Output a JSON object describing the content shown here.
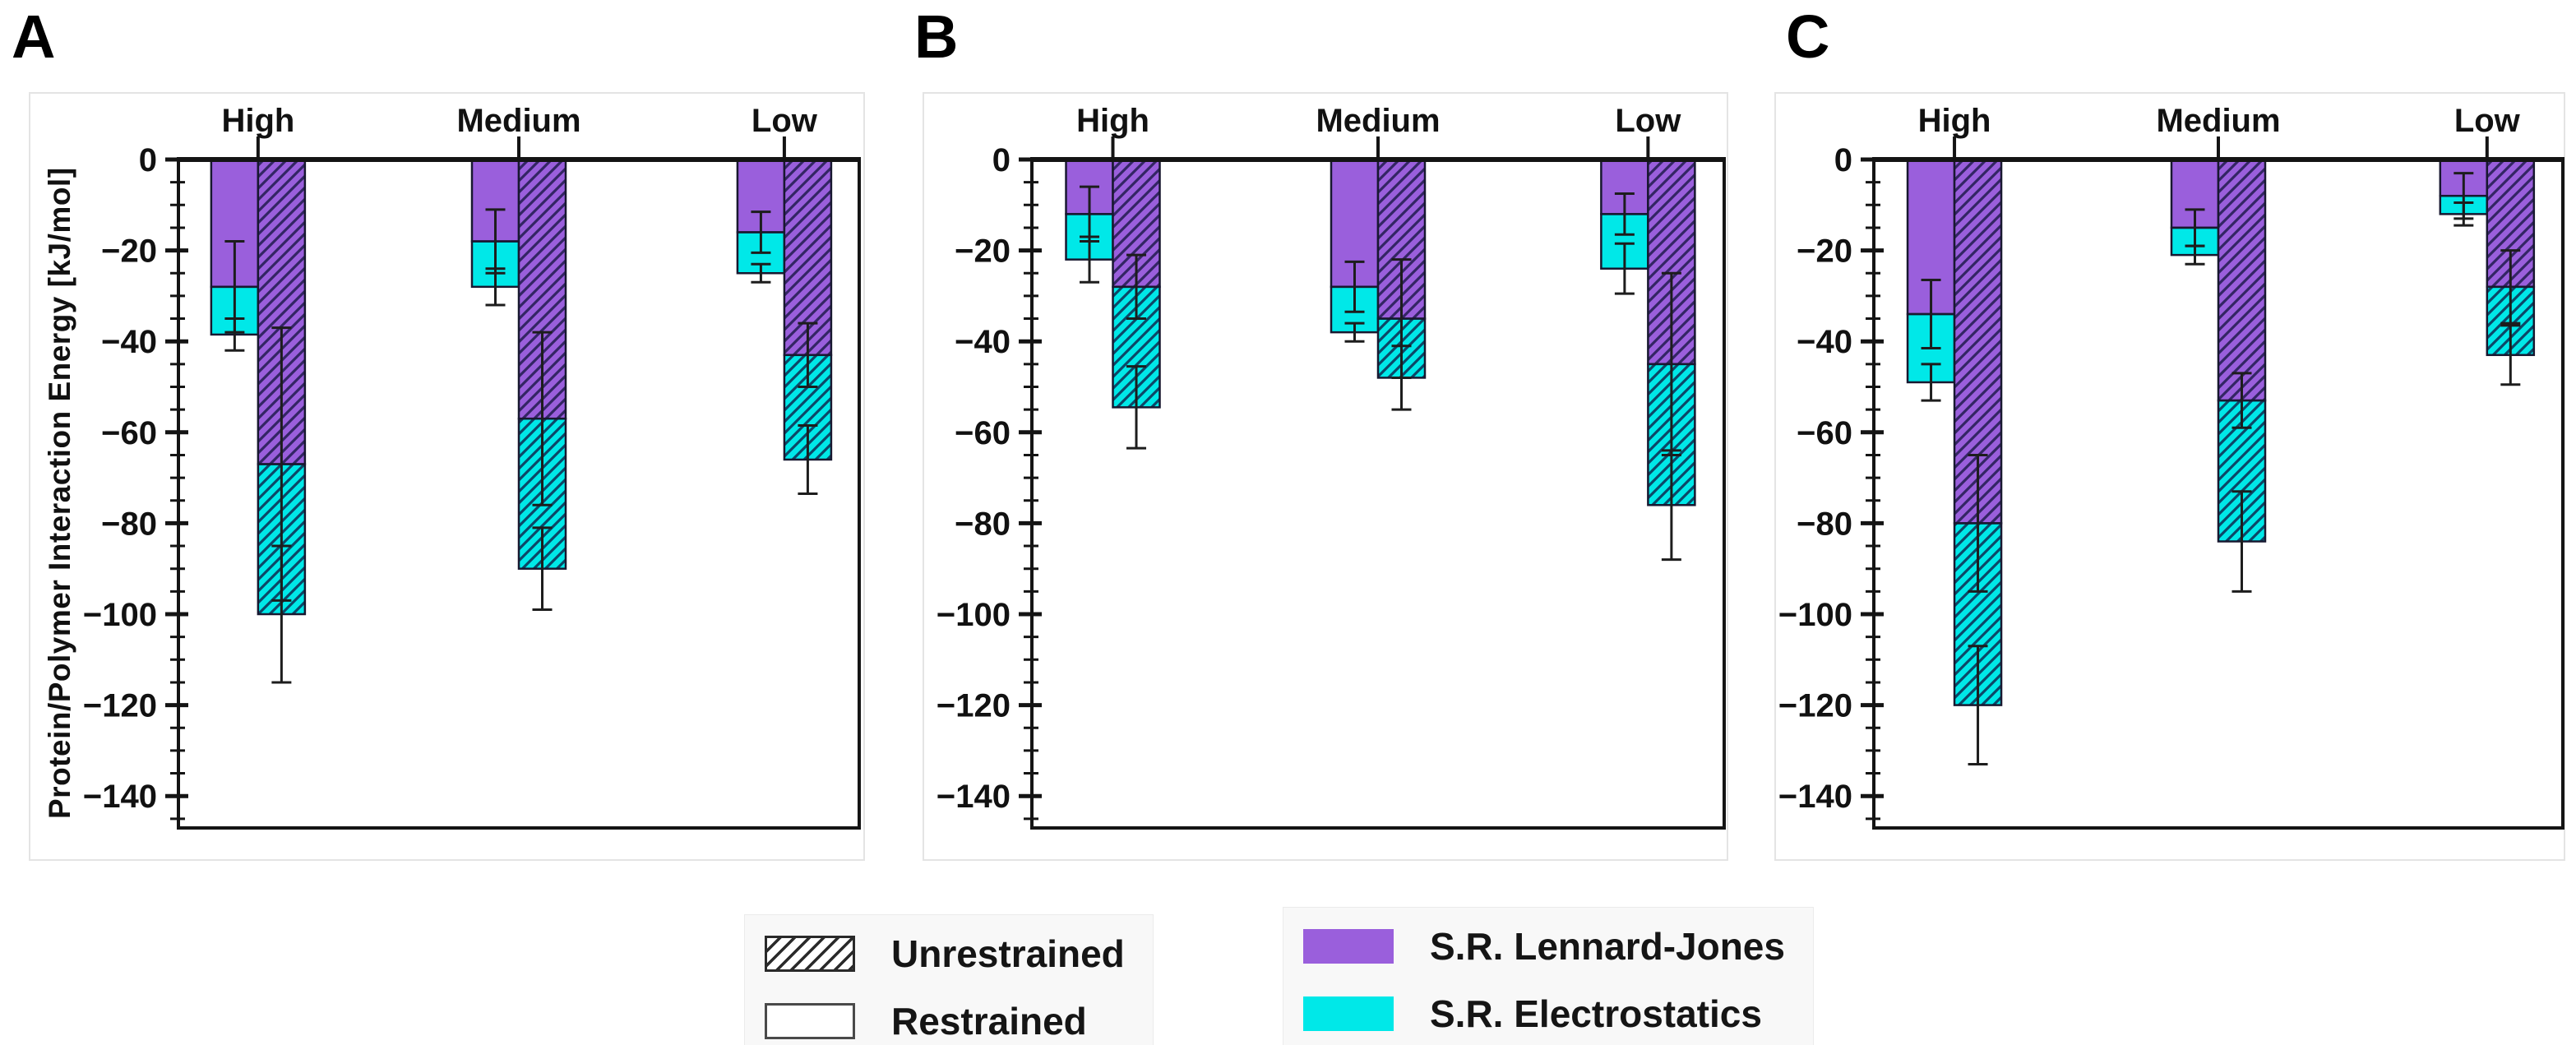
{
  "figure": {
    "panels": [
      {
        "letter": "A"
      },
      {
        "letter": "B"
      },
      {
        "letter": "C"
      }
    ],
    "axis": {
      "ylabel": "Protein/Polymer Interaction Energy [kJ/mol]",
      "ymax": 0,
      "ymin": -150,
      "major_tick_step": 20,
      "minor_tick_step": 5,
      "ytick_values": [
        0,
        -20,
        -40,
        -60,
        -80,
        -100,
        -120,
        -140
      ]
    }
  },
  "colors": {
    "lennard_jones": "#9A5FDC",
    "electrostatics": "#00E8E8",
    "bar_edge": "#181830",
    "hatch": "rgba(16,18,60,0.75)",
    "axis": "#141414",
    "error_bar": "#1d1d1d"
  },
  "legend": {
    "pattern_items": [
      {
        "label": "Unrestrained",
        "pattern": "hatched"
      },
      {
        "label": "Restrained",
        "pattern": "plain"
      }
    ],
    "color_items": [
      {
        "label": "S.R. Lennard-Jones",
        "color_key": "lennard_jones"
      },
      {
        "label": "S.R. Electrostatics",
        "color_key": "electrostatics"
      }
    ]
  },
  "chart_data": [
    {
      "panel": "A",
      "type": "bar",
      "stacked": true,
      "categories": [
        "High",
        "Medium",
        "Low"
      ],
      "units": "kJ/mol",
      "groups": [
        {
          "condition": "Restrained",
          "hatched": false,
          "lennard_jones": [
            -28,
            -18,
            -16
          ],
          "lj_error": [
            10,
            7,
            4.5
          ],
          "electrostatics": [
            -10.5,
            -10,
            -9
          ],
          "total": [
            -38.5,
            -28,
            -25
          ],
          "total_error": [
            3.5,
            4,
            2
          ]
        },
        {
          "condition": "Unrestrained",
          "hatched": true,
          "lennard_jones": [
            -67,
            -57,
            -43
          ],
          "lj_error": [
            30,
            19,
            7
          ],
          "electrostatics": [
            -33,
            -33,
            -23
          ],
          "total": [
            -100,
            -90,
            -66
          ],
          "total_error": [
            15,
            9,
            7.5
          ]
        }
      ]
    },
    {
      "panel": "B",
      "type": "bar",
      "stacked": true,
      "categories": [
        "High",
        "Medium",
        "Low"
      ],
      "units": "kJ/mol",
      "groups": [
        {
          "condition": "Restrained",
          "hatched": false,
          "lennard_jones": [
            -12,
            -28,
            -12
          ],
          "lj_error": [
            6,
            5.5,
            4.5
          ],
          "electrostatics": [
            -10,
            -10,
            -12
          ],
          "total": [
            -22,
            -38,
            -24
          ],
          "total_error": [
            5,
            2,
            5.5
          ]
        },
        {
          "condition": "Unrestrained",
          "hatched": true,
          "lennard_jones": [
            -28,
            -35,
            -45
          ],
          "lj_error": [
            7,
            13,
            20
          ],
          "electrostatics": [
            -26.5,
            -13,
            -31
          ],
          "total": [
            -54.5,
            -48,
            -76
          ],
          "total_error": [
            9,
            7,
            12
          ]
        }
      ]
    },
    {
      "panel": "C",
      "type": "bar",
      "stacked": true,
      "categories": [
        "High",
        "Medium",
        "Low"
      ],
      "units": "kJ/mol",
      "groups": [
        {
          "condition": "Restrained",
          "hatched": false,
          "lennard_jones": [
            -34,
            -15,
            -8
          ],
          "lj_error": [
            7.5,
            4,
            5
          ],
          "electrostatics": [
            -15,
            -6,
            -4
          ],
          "total": [
            -49,
            -21,
            -12
          ],
          "total_error": [
            4,
            2,
            2.5
          ]
        },
        {
          "condition": "Unrestrained",
          "hatched": true,
          "lennard_jones": [
            -80,
            -53,
            -28
          ],
          "lj_error": [
            15,
            6,
            8
          ],
          "electrostatics": [
            -40,
            -31,
            -15
          ],
          "total": [
            -120,
            -84,
            -43
          ],
          "total_error": [
            13,
            11,
            6.5
          ]
        }
      ]
    }
  ]
}
